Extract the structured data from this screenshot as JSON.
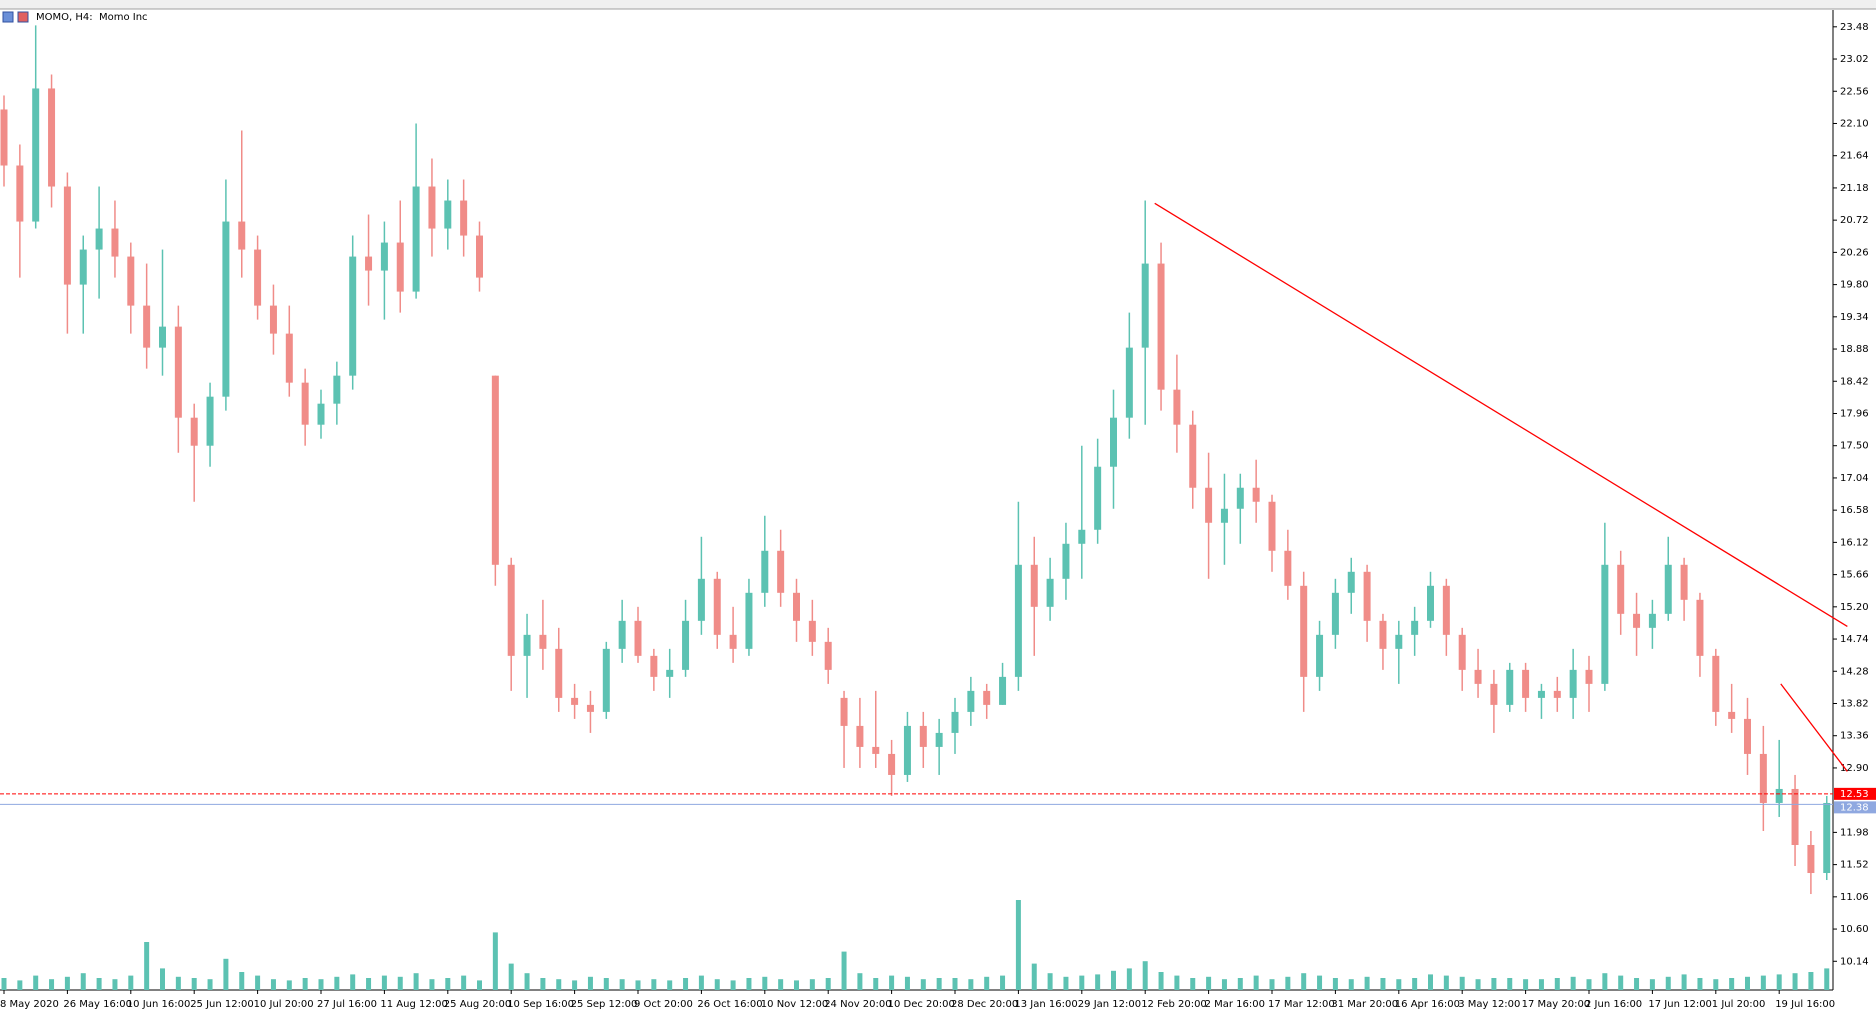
{
  "chart_data": {
    "type": "candlestick",
    "title": "MOMO, H4:  Momo Inc",
    "categories": [
      "8 May 2020",
      null,
      null,
      null,
      "26 May 16:00",
      null,
      null,
      null,
      "10 Jun 16:00",
      null,
      null,
      null,
      "25 Jun 12:00",
      null,
      null,
      null,
      "10 Jul 20:00",
      null,
      null,
      null,
      "27 Jul 16:00",
      null,
      null,
      null,
      "11 Aug 12:00",
      null,
      null,
      null,
      "25 Aug 20:00",
      null,
      null,
      null,
      "10 Sep 16:00",
      null,
      null,
      null,
      "25 Sep 12:00",
      null,
      null,
      null,
      "9 Oct 20:00",
      null,
      null,
      null,
      "26 Oct 16:00",
      null,
      null,
      null,
      "10 Nov 12:00",
      null,
      null,
      null,
      "24 Nov 20:00",
      null,
      null,
      null,
      "10 Dec 20:00",
      null,
      null,
      null,
      "28 Dec 20:00",
      null,
      null,
      null,
      "13 Jan 16:00",
      null,
      null,
      null,
      "29 Jan 12:00",
      null,
      null,
      null,
      "12 Feb 20:00",
      null,
      null,
      null,
      "2 Mar 16:00",
      null,
      null,
      null,
      "17 Mar 12:00",
      null,
      null,
      null,
      "31 Mar 20:00",
      null,
      null,
      null,
      "16 Apr 16:00",
      null,
      null,
      null,
      "3 May 12:00",
      null,
      null,
      null,
      "17 May 20:00",
      null,
      null,
      null,
      "2 Jun 16:00",
      null,
      null,
      null,
      "17 Jun 12:00",
      null,
      null,
      null,
      "1 Jul 20:00",
      null,
      null,
      null,
      "19 Jul 16:00",
      null,
      null,
      null
    ],
    "open": [
      22.3,
      21.5,
      20.7,
      22.6,
      21.2,
      19.8,
      20.3,
      20.6,
      20.2,
      19.5,
      18.9,
      19.2,
      17.9,
      17.5,
      18.2,
      20.7,
      20.3,
      19.5,
      19.1,
      18.4,
      17.8,
      18.1,
      18.5,
      20.2,
      20.0,
      20.4,
      19.7,
      21.2,
      20.6,
      21.0,
      20.5,
      18.5,
      15.8,
      14.5,
      14.8,
      14.6,
      13.9,
      13.8,
      13.7,
      14.6,
      15.0,
      14.5,
      14.2,
      14.3,
      15.0,
      15.6,
      14.8,
      14.6,
      15.4,
      16.0,
      15.4,
      15.0,
      14.7,
      13.9,
      13.5,
      13.2,
      13.1,
      12.8,
      13.5,
      13.2,
      13.4,
      13.7,
      14.0,
      13.8,
      14.2,
      15.8,
      15.2,
      15.6,
      16.1,
      16.3,
      17.2,
      17.9,
      18.9,
      20.1,
      18.3,
      17.8,
      16.9,
      16.4,
      16.6,
      16.9,
      16.7,
      16.0,
      15.5,
      14.2,
      14.8,
      15.4,
      15.7,
      15.0,
      14.6,
      14.8,
      15.0,
      15.5,
      14.8,
      14.3,
      14.1,
      13.8,
      14.3,
      13.9,
      14.0,
      13.9,
      14.3,
      14.1,
      15.8,
      15.1,
      14.9,
      15.1,
      15.8,
      15.3,
      14.5,
      13.7,
      13.6,
      13.1,
      12.4,
      12.6,
      11.8,
      11.4
    ],
    "high": [
      22.5,
      21.8,
      23.5,
      22.8,
      21.4,
      20.5,
      21.2,
      21.0,
      20.4,
      20.1,
      20.3,
      19.5,
      18.1,
      18.4,
      21.3,
      22.0,
      20.5,
      19.8,
      19.5,
      18.6,
      18.3,
      18.7,
      20.5,
      20.8,
      20.7,
      21.0,
      22.1,
      21.6,
      21.3,
      21.3,
      20.7,
      18.5,
      15.9,
      15.1,
      15.3,
      14.9,
      14.1,
      14.0,
      14.7,
      15.3,
      15.2,
      14.6,
      14.6,
      15.3,
      16.2,
      15.7,
      15.2,
      15.6,
      16.5,
      16.3,
      15.6,
      15.3,
      14.9,
      14.0,
      13.9,
      14.0,
      13.3,
      13.7,
      13.7,
      13.6,
      13.9,
      14.2,
      14.1,
      14.4,
      16.7,
      16.2,
      15.9,
      16.4,
      17.5,
      17.6,
      18.3,
      19.4,
      21.0,
      20.4,
      18.8,
      18.0,
      17.4,
      17.1,
      17.1,
      17.3,
      16.8,
      16.3,
      15.7,
      15.0,
      15.6,
      15.9,
      15.8,
      15.1,
      15.0,
      15.2,
      15.7,
      15.6,
      14.9,
      14.6,
      14.3,
      14.4,
      14.4,
      14.1,
      14.2,
      14.6,
      14.5,
      16.4,
      16.0,
      15.4,
      15.3,
      16.2,
      15.9,
      15.4,
      14.6,
      14.1,
      13.9,
      13.5,
      13.3,
      12.8,
      12.0,
      12.5
    ],
    "low": [
      21.2,
      19.9,
      20.6,
      20.9,
      19.1,
      19.1,
      19.6,
      19.9,
      19.1,
      18.6,
      18.5,
      17.4,
      16.7,
      17.2,
      18.0,
      19.9,
      19.3,
      18.8,
      18.2,
      17.5,
      17.6,
      17.8,
      18.3,
      19.5,
      19.3,
      19.4,
      19.6,
      20.2,
      20.3,
      20.2,
      19.7,
      15.5,
      14.0,
      13.9,
      14.3,
      13.7,
      13.6,
      13.4,
      13.6,
      14.4,
      14.4,
      14.0,
      13.9,
      14.2,
      14.8,
      14.6,
      14.4,
      14.5,
      15.2,
      15.2,
      14.7,
      14.5,
      14.1,
      12.9,
      12.9,
      12.9,
      12.5,
      12.7,
      12.9,
      12.8,
      13.1,
      13.5,
      13.6,
      13.8,
      14.0,
      14.5,
      15.0,
      15.3,
      15.6,
      16.1,
      16.6,
      17.6,
      17.8,
      18.0,
      17.4,
      16.6,
      15.6,
      15.8,
      16.1,
      16.4,
      15.7,
      15.3,
      13.7,
      14.0,
      14.6,
      15.1,
      14.7,
      14.3,
      14.1,
      14.5,
      14.9,
      14.5,
      14.0,
      13.9,
      13.4,
      13.7,
      13.7,
      13.6,
      13.7,
      13.6,
      13.7,
      14.0,
      14.8,
      14.5,
      14.6,
      15.0,
      15.0,
      14.2,
      13.5,
      13.4,
      12.8,
      12.0,
      12.2,
      11.5,
      11.1,
      11.3
    ],
    "close": [
      21.5,
      20.7,
      22.6,
      21.2,
      19.8,
      20.3,
      20.6,
      20.2,
      19.5,
      18.9,
      19.2,
      17.9,
      17.5,
      18.2,
      20.7,
      20.3,
      19.5,
      19.1,
      18.4,
      17.8,
      18.1,
      18.5,
      20.2,
      20.0,
      20.4,
      19.7,
      21.2,
      20.6,
      21.0,
      20.5,
      19.9,
      15.8,
      14.5,
      14.8,
      14.6,
      13.9,
      13.8,
      13.7,
      14.6,
      15.0,
      14.5,
      14.2,
      14.3,
      15.0,
      15.6,
      14.8,
      14.6,
      15.4,
      16.0,
      15.4,
      15.0,
      14.7,
      14.3,
      13.5,
      13.2,
      13.1,
      12.8,
      13.5,
      13.2,
      13.4,
      13.7,
      14.0,
      13.8,
      14.2,
      15.8,
      15.2,
      15.6,
      16.1,
      16.3,
      17.2,
      17.9,
      18.9,
      20.1,
      18.3,
      17.8,
      16.9,
      16.4,
      16.6,
      16.9,
      16.7,
      16.0,
      15.5,
      14.2,
      14.8,
      15.4,
      15.7,
      15.0,
      14.6,
      14.8,
      15.0,
      15.5,
      14.8,
      14.3,
      14.1,
      13.8,
      14.3,
      13.9,
      14.0,
      13.9,
      14.3,
      14.1,
      15.8,
      15.1,
      14.9,
      15.1,
      15.8,
      15.3,
      14.5,
      13.7,
      13.6,
      13.1,
      12.4,
      12.6,
      11.8,
      11.4,
      12.4
    ],
    "volume": [
      10,
      8,
      12,
      9,
      11,
      14,
      10,
      9,
      12,
      40,
      18,
      11,
      10,
      9,
      26,
      15,
      12,
      9,
      8,
      10,
      9,
      11,
      13,
      10,
      12,
      11,
      14,
      9,
      10,
      12,
      8,
      48,
      22,
      14,
      10,
      9,
      8,
      11,
      10,
      9,
      8,
      9,
      8,
      10,
      12,
      9,
      8,
      10,
      11,
      9,
      8,
      9,
      10,
      32,
      14,
      10,
      12,
      11,
      9,
      10,
      10,
      9,
      11,
      12,
      75,
      22,
      14,
      11,
      12,
      13,
      16,
      18,
      24,
      15,
      12,
      10,
      11,
      9,
      10,
      12,
      9,
      11,
      14,
      12,
      10,
      9,
      11,
      10,
      9,
      10,
      13,
      12,
      11,
      9,
      10,
      10,
      9,
      9,
      10,
      11,
      9,
      14,
      12,
      10,
      9,
      11,
      13,
      10,
      9,
      10,
      11,
      12,
      13,
      14,
      15,
      18
    ],
    "up_color": "#5cc2b2",
    "down_color": "#f08c88",
    "volume_color": "#5cc2b2",
    "ylim": [
      9.73,
      23.72
    ],
    "yticks": [
      23.48,
      23.02,
      22.56,
      {
        "value": 22.1,
        "label": "22.10"
      },
      21.64,
      21.18,
      20.72,
      20.26,
      {
        "value": 19.8,
        "label": "19.80"
      },
      19.34,
      18.88,
      18.42,
      17.96,
      {
        "value": 17.5,
        "label": "17.50"
      },
      17.04,
      16.58,
      16.12,
      15.66,
      {
        "value": 15.2,
        "label": "15.20"
      },
      14.74,
      14.28,
      13.82,
      13.36,
      {
        "value": 12.9,
        "label": "12.90"
      },
      11.98,
      11.52,
      11.06,
      {
        "value": 10.6,
        "label": "10.60"
      },
      10.14
    ],
    "price_lines": [
      {
        "value": 12.53,
        "color": "#ff0000"
      },
      {
        "value": 12.38,
        "color": "#8fa8e0"
      }
    ],
    "trendlines": [
      {
        "x": [
          72.6,
          116.3
        ],
        "y": [
          20.96,
          14.92
        ],
        "color": "#ff0000"
      },
      {
        "x": [
          112.1,
          116.3
        ],
        "y": [
          14.1,
          12.85
        ],
        "color": "#ff0000"
      }
    ],
    "grid": false
  }
}
